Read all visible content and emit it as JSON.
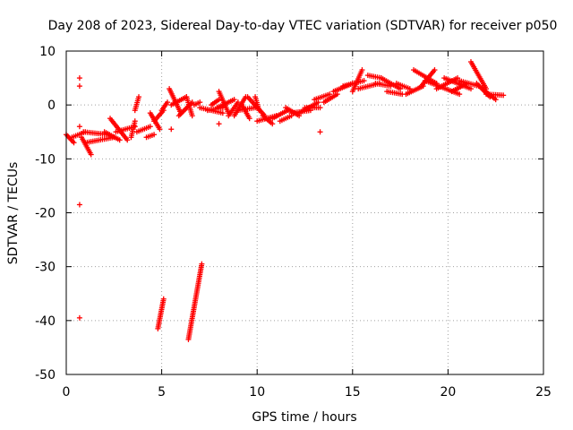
{
  "chart_data": {
    "type": "scatter",
    "title": "Day 208 of 2023, Sidereal Day-to-day VTEC variation (SDTVAR) for receiver p050",
    "xlabel": "GPS time / hours",
    "ylabel": "SDTVAR / TECUs",
    "xlim": [
      0,
      25
    ],
    "ylim": [
      -50,
      10
    ],
    "xticks": [
      "0",
      "5",
      "10",
      "15",
      "20",
      "25"
    ],
    "yticks": [
      "10",
      "0",
      "-10",
      "-20",
      "-30",
      "-40",
      "-50"
    ],
    "grid": true,
    "marker": "+",
    "series_color": "#ff0000",
    "segments": [
      {
        "x0": 0.0,
        "y0": -5.5,
        "x1": 0.4,
        "y1": -7.0
      },
      {
        "x0": 0.3,
        "y0": -6.0,
        "x1": 1.0,
        "y1": -5.0
      },
      {
        "x0": 0.8,
        "y0": -6.0,
        "x1": 1.3,
        "y1": -9.2
      },
      {
        "x0": 0.9,
        "y0": -5.0,
        "x1": 2.2,
        "y1": -5.5
      },
      {
        "x0": 1.0,
        "y0": -7.0,
        "x1": 2.5,
        "y1": -6.0
      },
      {
        "x0": 2.0,
        "y0": -5.0,
        "x1": 2.8,
        "y1": -6.5
      },
      {
        "x0": 2.3,
        "y0": -2.5,
        "x1": 3.2,
        "y1": -6.5
      },
      {
        "x0": 2.6,
        "y0": -5.0,
        "x1": 3.6,
        "y1": -4.0
      },
      {
        "x0": 3.4,
        "y0": -6.0,
        "x1": 3.6,
        "y1": -3.0
      },
      {
        "x0": 3.6,
        "y0": -1.0,
        "x1": 3.8,
        "y1": 1.5
      },
      {
        "x0": 3.7,
        "y0": -5.0,
        "x1": 4.4,
        "y1": -4.0
      },
      {
        "x0": 4.2,
        "y0": -6.0,
        "x1": 4.6,
        "y1": -5.5
      },
      {
        "x0": 4.4,
        "y0": -1.5,
        "x1": 4.9,
        "y1": -4.5
      },
      {
        "x0": 4.6,
        "y0": -3.0,
        "x1": 5.1,
        "y1": -1.0
      },
      {
        "x0": 5.0,
        "y0": -1.0,
        "x1": 5.3,
        "y1": 0.5
      },
      {
        "x0": 5.4,
        "y0": 3.0,
        "x1": 6.0,
        "y1": -1.5
      },
      {
        "x0": 5.5,
        "y0": 0.0,
        "x1": 6.3,
        "y1": 1.5
      },
      {
        "x0": 5.9,
        "y0": -2.0,
        "x1": 6.6,
        "y1": 0.5
      },
      {
        "x0": 6.3,
        "y0": 1.5,
        "x1": 6.6,
        "y1": -2.0
      },
      {
        "x0": 6.7,
        "y0": 0.0,
        "x1": 7.0,
        "y1": 0.5
      },
      {
        "x0": 7.0,
        "y0": -0.5,
        "x1": 8.2,
        "y1": -1.5
      },
      {
        "x0": 7.4,
        "y0": -1.0,
        "x1": 8.2,
        "y1": -0.5
      },
      {
        "x0": 7.6,
        "y0": 0.0,
        "x1": 8.0,
        "y1": 1.0
      },
      {
        "x0": 7.9,
        "y0": -0.5,
        "x1": 8.8,
        "y1": 1.0
      },
      {
        "x0": 8.0,
        "y0": 2.5,
        "x1": 8.5,
        "y1": -1.5
      },
      {
        "x0": 8.5,
        "y0": -2.0,
        "x1": 9.0,
        "y1": 0.5
      },
      {
        "x0": 8.8,
        "y0": -2.0,
        "x1": 9.4,
        "y1": 1.5
      },
      {
        "x0": 9.0,
        "y0": -1.0,
        "x1": 9.9,
        "y1": -0.5
      },
      {
        "x0": 9.2,
        "y0": 0.0,
        "x1": 9.6,
        "y1": -2.5
      },
      {
        "x0": 9.5,
        "y0": 1.5,
        "x1": 10.4,
        "y1": -2.0
      },
      {
        "x0": 9.9,
        "y0": 1.5,
        "x1": 10.1,
        "y1": -1.0
      },
      {
        "x0": 10.0,
        "y0": -3.0,
        "x1": 11.0,
        "y1": -2.0
      },
      {
        "x0": 10.3,
        "y0": -2.0,
        "x1": 10.8,
        "y1": -3.5
      },
      {
        "x0": 10.8,
        "y0": -2.5,
        "x1": 11.6,
        "y1": -1.0
      },
      {
        "x0": 11.2,
        "y0": -3.0,
        "x1": 11.8,
        "y1": -2.0
      },
      {
        "x0": 11.5,
        "y0": -0.5,
        "x1": 12.2,
        "y1": -2.0
      },
      {
        "x0": 11.8,
        "y0": -1.5,
        "x1": 12.8,
        "y1": -1.0
      },
      {
        "x0": 12.2,
        "y0": -1.5,
        "x1": 13.2,
        "y1": 0.5
      },
      {
        "x0": 12.5,
        "y0": -0.5,
        "x1": 13.3,
        "y1": -0.5
      },
      {
        "x0": 13.0,
        "y0": 1.0,
        "x1": 13.8,
        "y1": 2.0
      },
      {
        "x0": 13.5,
        "y0": 0.5,
        "x1": 14.2,
        "y1": 2.0
      },
      {
        "x0": 14.0,
        "y0": 2.5,
        "x1": 15.0,
        "y1": 4.0
      },
      {
        "x0": 14.5,
        "y0": 3.5,
        "x1": 15.6,
        "y1": 4.5
      },
      {
        "x0": 15.0,
        "y0": 2.5,
        "x1": 15.5,
        "y1": 6.5
      },
      {
        "x0": 15.3,
        "y0": 3.0,
        "x1": 16.4,
        "y1": 4.0
      },
      {
        "x0": 15.8,
        "y0": 5.5,
        "x1": 16.5,
        "y1": 5.0
      },
      {
        "x0": 16.2,
        "y0": 4.0,
        "x1": 17.0,
        "y1": 3.5
      },
      {
        "x0": 16.8,
        "y0": 2.5,
        "x1": 17.6,
        "y1": 2.0
      },
      {
        "x0": 16.5,
        "y0": 5.0,
        "x1": 17.5,
        "y1": 3.0
      },
      {
        "x0": 17.3,
        "y0": 4.0,
        "x1": 18.0,
        "y1": 3.0
      },
      {
        "x0": 17.8,
        "y0": 2.0,
        "x1": 18.7,
        "y1": 3.5
      },
      {
        "x0": 18.2,
        "y0": 6.5,
        "x1": 19.4,
        "y1": 4.0
      },
      {
        "x0": 18.6,
        "y0": 3.5,
        "x1": 19.3,
        "y1": 6.5
      },
      {
        "x0": 18.8,
        "y0": 4.5,
        "x1": 20.6,
        "y1": 2.0
      },
      {
        "x0": 19.4,
        "y0": 3.0,
        "x1": 20.5,
        "y1": 5.0
      },
      {
        "x0": 19.8,
        "y0": 5.0,
        "x1": 21.2,
        "y1": 3.0
      },
      {
        "x0": 20.2,
        "y0": 2.5,
        "x1": 21.0,
        "y1": 4.0
      },
      {
        "x0": 20.6,
        "y0": 4.5,
        "x1": 21.6,
        "y1": 3.5
      },
      {
        "x0": 21.2,
        "y0": 8.0,
        "x1": 22.0,
        "y1": 3.0
      },
      {
        "x0": 21.5,
        "y0": 4.0,
        "x1": 22.2,
        "y1": 1.5
      },
      {
        "x0": 21.8,
        "y0": 3.0,
        "x1": 22.5,
        "y1": 1.0
      },
      {
        "x0": 22.0,
        "y0": 2.0,
        "x1": 22.9,
        "y1": 1.8
      }
    ],
    "outlier_points": [
      {
        "x": 0.7,
        "y": 5.0
      },
      {
        "x": 0.7,
        "y": 3.5
      },
      {
        "x": 0.7,
        "y": -18.5
      },
      {
        "x": 0.7,
        "y": -39.5
      },
      {
        "x": 5.5,
        "y": -4.5
      },
      {
        "x": 0.7,
        "y": -4.0
      },
      {
        "x": 8.0,
        "y": -3.5
      },
      {
        "x": 13.3,
        "y": -5.0
      }
    ],
    "tail_segments": [
      {
        "x0": 4.8,
        "y0": -41.5,
        "x1": 5.1,
        "y1": -36.0
      },
      {
        "x0": 6.4,
        "y0": -43.5,
        "x1": 7.1,
        "y1": -29.5
      }
    ]
  }
}
